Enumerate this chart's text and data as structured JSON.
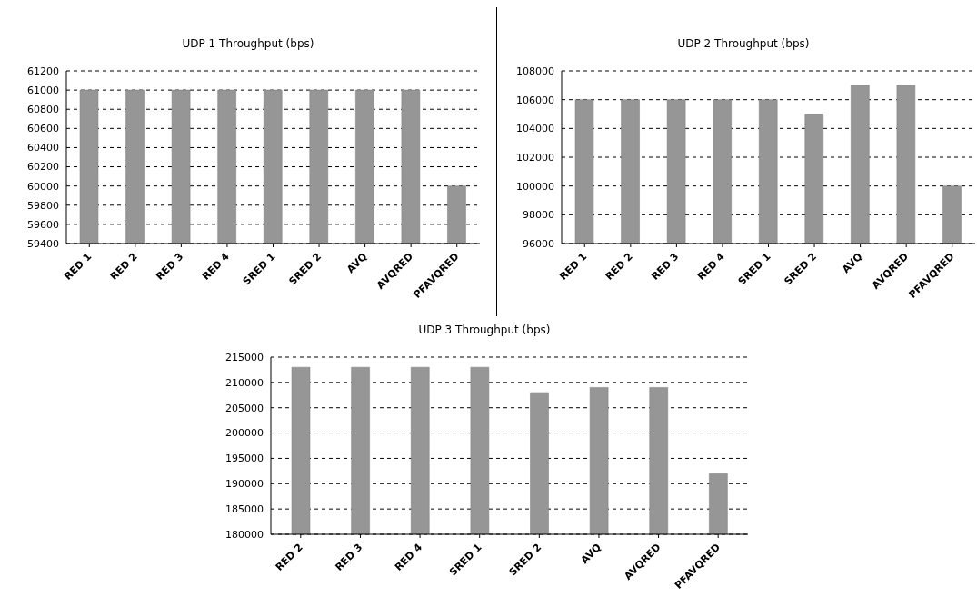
{
  "chart_data": [
    {
      "type": "bar",
      "title": "UDP 1 Throughput (bps)",
      "categories": [
        "RED 1",
        "RED 2",
        "RED 3",
        "RED 4",
        "SRED 1",
        "SRED 2",
        "AVQ",
        "AVQRED",
        "PFAVQRED"
      ],
      "values": [
        61000,
        61000,
        61000,
        61000,
        61000,
        61000,
        61000,
        61000,
        60000
      ],
      "color": "#969696",
      "ylim": [
        59400,
        61200
      ],
      "yticks": [
        59400,
        59600,
        59800,
        60000,
        60200,
        60400,
        60600,
        60800,
        61000,
        61200
      ],
      "grid": "y",
      "legend": false
    },
    {
      "type": "bar",
      "title": "UDP 2 Throughput (bps)",
      "categories": [
        "RED 1",
        "RED 2",
        "RED 3",
        "RED 4",
        "SRED 1",
        "SRED 2",
        "AVQ",
        "AVQRED",
        "PFAVQRED"
      ],
      "values": [
        106000,
        106000,
        106000,
        106000,
        106000,
        105000,
        107000,
        107000,
        100000
      ],
      "color": "#969696",
      "ylim": [
        96000,
        108000
      ],
      "yticks": [
        96000,
        98000,
        100000,
        102000,
        104000,
        106000,
        108000
      ],
      "grid": "y",
      "legend": false
    },
    {
      "type": "bar",
      "title": "UDP 3 Throughput (bps)",
      "categories": [
        "RED 2",
        "RED 3",
        "RED 4",
        "SRED 1",
        "SRED 2",
        "AVQ",
        "AVQRED",
        "PFAVQRED"
      ],
      "values": [
        213000,
        213000,
        213000,
        213000,
        208000,
        209000,
        209000,
        192000
      ],
      "color": "#969696",
      "ylim": [
        180000,
        215000
      ],
      "yticks": [
        180000,
        185000,
        190000,
        195000,
        200000,
        205000,
        210000,
        215000
      ],
      "grid": "y",
      "legend": false
    }
  ]
}
